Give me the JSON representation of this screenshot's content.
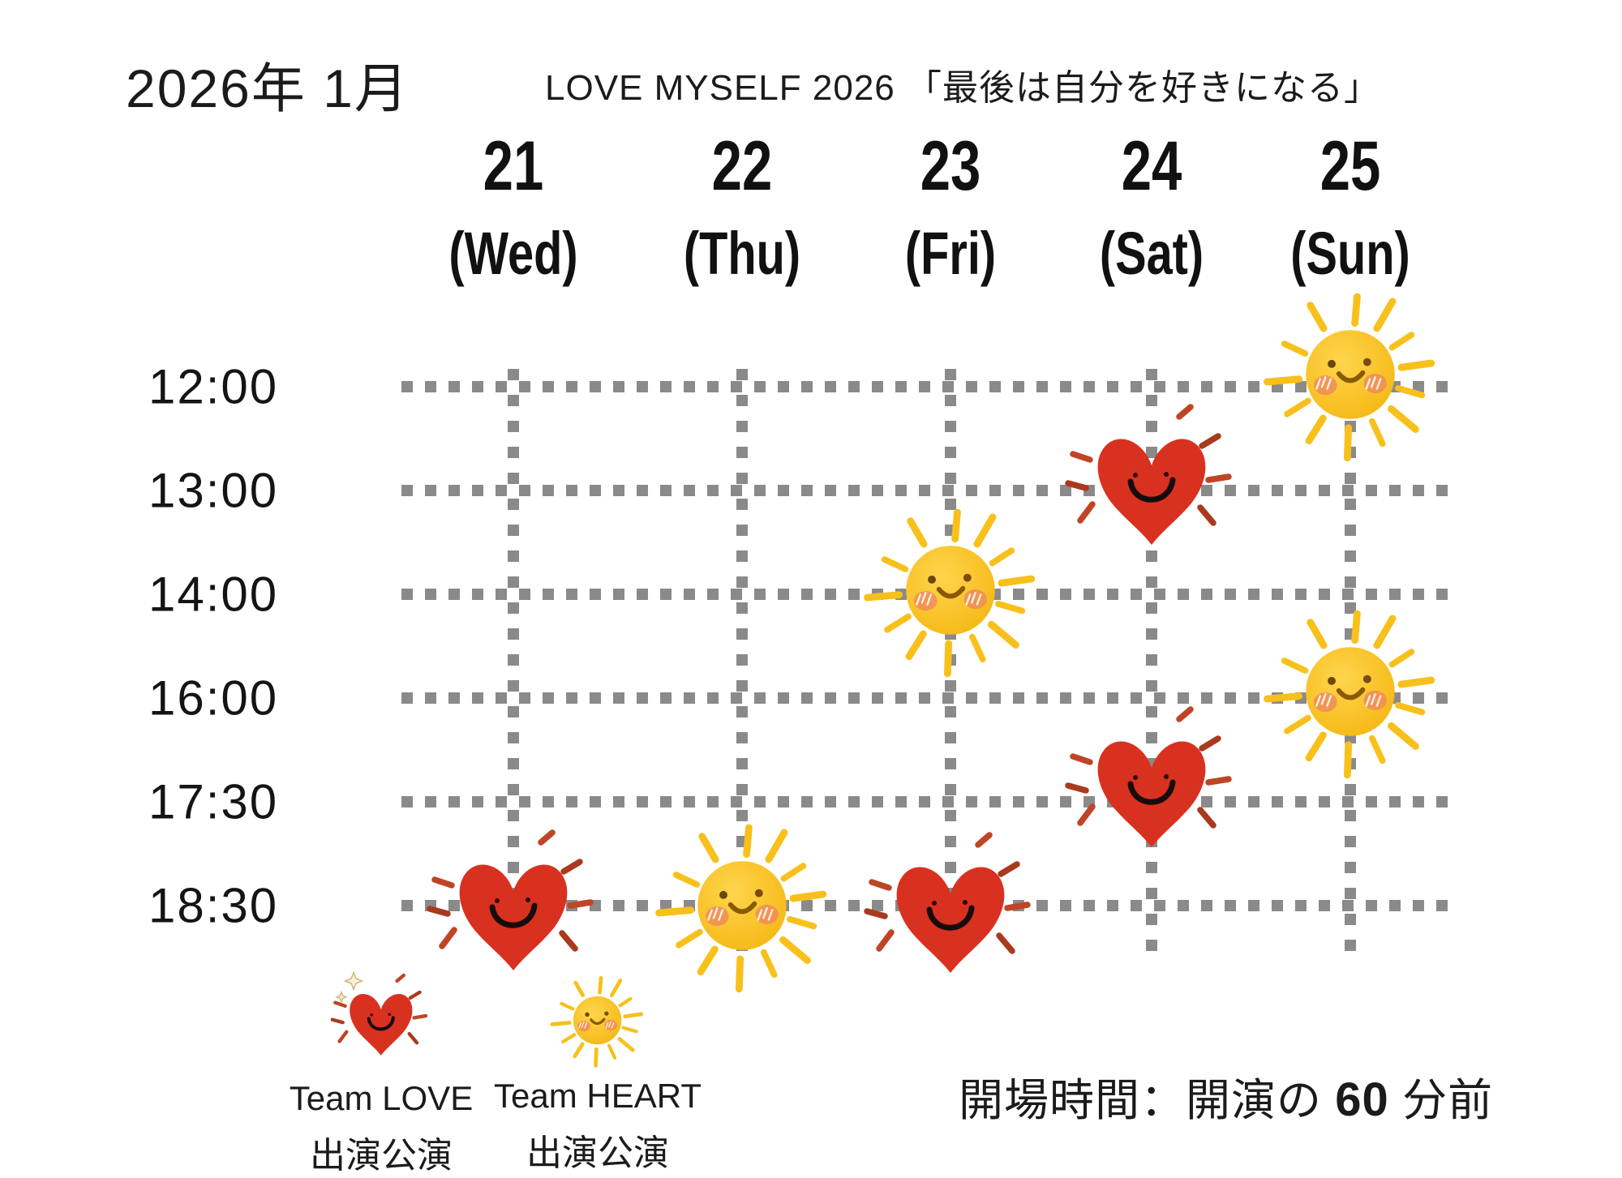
{
  "header": {
    "title": "2026年 1月",
    "subtitle": "LOVE MYSELF 2026 「最後は自分を好きになる」"
  },
  "days": [
    {
      "date": "21",
      "weekday": "(Wed)"
    },
    {
      "date": "22",
      "weekday": "(Thu)"
    },
    {
      "date": "23",
      "weekday": "(Fri)"
    },
    {
      "date": "24",
      "weekday": "(Sat)"
    },
    {
      "date": "25",
      "weekday": "(Sun)"
    }
  ],
  "times": [
    "12:00",
    "13:00",
    "14:00",
    "16:00",
    "17:30",
    "18:30"
  ],
  "schedule": [
    {
      "date": "25",
      "time": "12:00",
      "team": "HEART",
      "icon": "sun-icon"
    },
    {
      "date": "24",
      "time": "13:00",
      "team": "LOVE",
      "icon": "heart-icon"
    },
    {
      "date": "23",
      "time": "14:00",
      "team": "HEART",
      "icon": "sun-icon"
    },
    {
      "date": "25",
      "time": "16:00",
      "team": "HEART",
      "icon": "sun-icon"
    },
    {
      "date": "24",
      "time": "17:30",
      "team": "LOVE",
      "icon": "heart-icon"
    },
    {
      "date": "21",
      "time": "18:30",
      "team": "LOVE",
      "icon": "heart-icon"
    },
    {
      "date": "22",
      "time": "18:30",
      "team": "HEART",
      "icon": "sun-icon"
    },
    {
      "date": "23",
      "time": "18:30",
      "team": "LOVE",
      "icon": "heart-icon"
    }
  ],
  "legend": [
    {
      "team": "LOVE",
      "icon": "heart-icon",
      "line1": "Team LOVE",
      "line2": "出演公演"
    },
    {
      "team": "HEART",
      "icon": "sun-icon",
      "line1": "Team HEART",
      "line2": "出演公演"
    }
  ],
  "note": {
    "prefix": "開場時間：開演の ",
    "value": "60",
    "suffix": " 分前"
  },
  "colors": {
    "heart_red": "#d93120",
    "heart_ray": "#bf4526",
    "heart_ray_dark": "#a93a1d",
    "heart_face": "#170c0b",
    "sun_body_light": "#ffd54d",
    "sun_body": "#f5b713",
    "sun_ray": "#f8c01a",
    "sun_smile": "#8a5a00",
    "sun_eye": "#6b4708",
    "sun_cheek": "#f0875c",
    "grid_gray": "#8a8a8a",
    "text_black": "#1b1b1b",
    "sparkle_fill": "#fbf2d9",
    "sparkle_stroke": "#cdb575"
  }
}
